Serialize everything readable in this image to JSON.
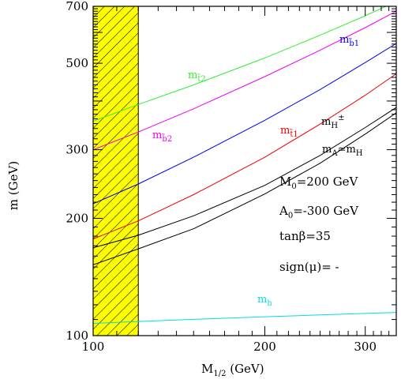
{
  "chart_data": {
    "type": "line",
    "xlabel": {
      "main": "M",
      "sub": "1/2",
      "rest": " (GeV)"
    },
    "ylabel": "m (GeV)",
    "xscale": "log",
    "yscale": "log",
    "xlim": [
      100,
      340
    ],
    "ylim": [
      100,
      700
    ],
    "x_ticks": [
      100,
      200,
      300
    ],
    "y_ticks": [
      100,
      200,
      300,
      500,
      700
    ],
    "excluded_region": {
      "x_from": 100,
      "x_to": 120,
      "color": "#ffff00"
    },
    "annotations": [
      "M",
      "0",
      "=200 GeV",
      "A",
      "0",
      "=-300 GeV",
      "tanβ=35",
      "sign(μ)= -"
    ],
    "series": [
      {
        "label_main": "m",
        "label_sub": "t̃2",
        "color": "#33ee33",
        "x": [
          100,
          120,
          150,
          200,
          250,
          300,
          340
        ],
        "y": [
          355,
          392,
          440,
          516,
          590,
          662,
          720
        ]
      },
      {
        "label_main": "m",
        "label_sub": "b̃2",
        "color": "#ee00ee",
        "x": [
          100,
          120,
          150,
          200,
          250,
          300,
          340
        ],
        "y": [
          300,
          333,
          382,
          462,
          540,
          617,
          680
        ]
      },
      {
        "label_main": "m",
        "label_sub": "b̃1",
        "color": "#0000ee",
        "x": [
          100,
          120,
          150,
          200,
          250,
          300,
          340
        ],
        "y": [
          218,
          245,
          287,
          357,
          428,
          502,
          562
        ]
      },
      {
        "label_main": "m",
        "label_sub": "t̃1",
        "color": "#ee0000",
        "x": [
          100,
          120,
          150,
          200,
          250,
          300,
          340
        ],
        "y": [
          177,
          197,
          230,
          287,
          349,
          414,
          470
        ]
      },
      {
        "label_main": "m",
        "label_sub": "H",
        "label_sup": "±",
        "color": "#000000",
        "x": [
          100,
          120,
          150,
          200,
          250,
          300,
          340
        ],
        "y": [
          168,
          181,
          203,
          243,
          290,
          342,
          385
        ]
      },
      {
        "label_main": "m",
        "label_sub": "A",
        "label_mid": "≃m",
        "label_sub2": "H",
        "color": "#000000",
        "x": [
          100,
          120,
          150,
          200,
          250,
          300,
          340
        ],
        "y": [
          152,
          167,
          188,
          231,
          277,
          329,
          373
        ]
      },
      {
        "label_main": "m",
        "label_sub": "h",
        "color": "#00dddd",
        "x": [
          100,
          120,
          150,
          200,
          250,
          300,
          340
        ],
        "y": [
          107.5,
          108.7,
          110.1,
          111.8,
          113.0,
          114.0,
          114.7
        ]
      }
    ]
  }
}
